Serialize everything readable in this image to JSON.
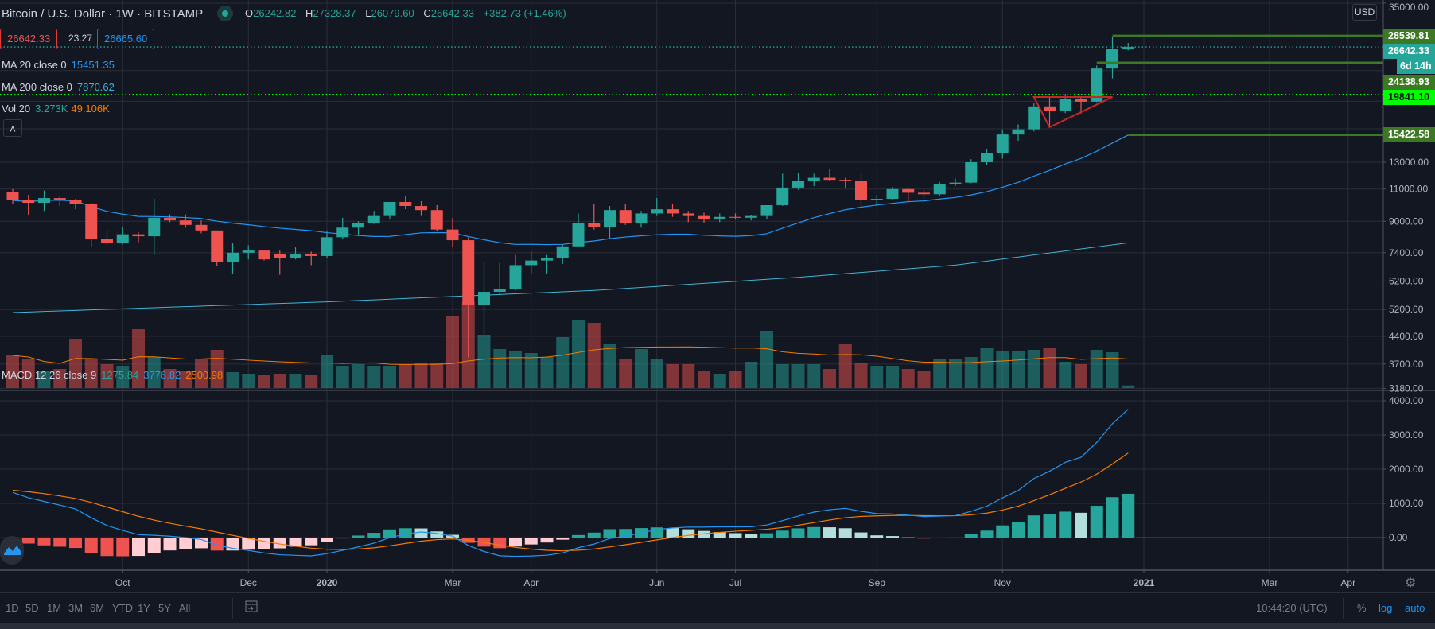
{
  "header": {
    "symbol": "Bitcoin / U.S. Dollar",
    "sep1": "·",
    "interval": "1W",
    "sep2": "·",
    "exchange": "BITSTAMP",
    "ohlc": {
      "o_label": "O",
      "o": "26242.82",
      "h_label": "H",
      "h": "27328.37",
      "l_label": "L",
      "l": "26079.60",
      "c_label": "C",
      "c": "26642.33",
      "change": "+382.73 (+1.46%)"
    },
    "sell_price": "26642.33",
    "spread": "23.27",
    "buy_price": "26665.60",
    "collapse_icon": "chevron-up-icon",
    "collapse_glyph": "˄"
  },
  "indicators": {
    "ma20": {
      "label": "MA 20 close 0",
      "value": "15451.35",
      "color": "#2196f3"
    },
    "ma200": {
      "label": "MA 200 close 0",
      "value": "7870.62",
      "color": "#3fb5d6"
    },
    "vol": {
      "label": "Vol 20",
      "value": "3.273K",
      "ma_value": "49.106K",
      "ma_color": "#f57c00"
    },
    "macd": {
      "label": "MACD 12 26 close 9",
      "hist": "1275.84",
      "macd": "3776.82",
      "signal": "2500.98"
    }
  },
  "currency_button": "USD",
  "price_labels": [
    {
      "text": "28539.81",
      "price": 28539.81,
      "bg": "#3b7a22",
      "fg": "#ffffff"
    },
    {
      "text": "26642.33",
      "price": 26642.33,
      "bg": "#26a69a",
      "fg": "#ffffff",
      "countdown": "6d 14h"
    },
    {
      "text": "24138.93",
      "price": 24138.93,
      "bg": "#3b7a22",
      "fg": "#ffffff"
    },
    {
      "text": "19841.10",
      "price": 19841.1,
      "bg": "#00ff00",
      "fg": "#131722"
    },
    {
      "text": "15422.58",
      "price": 15422.58,
      "bg": "#3b7a22",
      "fg": "#ffffff"
    }
  ],
  "chart_data": {
    "type": "candlestick",
    "scale": "log",
    "colors": {
      "up": "#26a69a",
      "down": "#ef5350",
      "ma20": "#2196f3",
      "ma200": "#3fb5d6",
      "vol_ma": "#f57c00",
      "macd": "#2196f3",
      "signal": "#f57c00"
    },
    "price_ticks": [
      "35000.00",
      "13000.00",
      "11000.00",
      "9000.00",
      "7400.00",
      "6200.00",
      "5200.00",
      "4400.00",
      "3700.00",
      "3180.00"
    ],
    "grid_levels": [
      35000,
      23000,
      19000,
      16000,
      13000,
      11000,
      9000,
      7400,
      6200,
      5200,
      4400,
      3700,
      3180
    ],
    "macd_ticks": [
      "4000.00",
      "3000.00",
      "2000.00",
      "1000.00",
      "0.00"
    ],
    "macd_tick_values": [
      4000,
      3000,
      2000,
      1000,
      0
    ],
    "time_axis": [
      {
        "label": "Oct",
        "bar": 7
      },
      {
        "label": "Dec",
        "bar": 15
      },
      {
        "label": "2020",
        "bar": 20,
        "year": true
      },
      {
        "label": "Mar",
        "bar": 28
      },
      {
        "label": "Apr",
        "bar": 33
      },
      {
        "label": "Jun",
        "bar": 41
      },
      {
        "label": "Jul",
        "bar": 46
      },
      {
        "label": "Sep",
        "bar": 55
      },
      {
        "label": "Nov",
        "bar": 63
      },
      {
        "label": "2021",
        "bar": 72,
        "year": true
      },
      {
        "label": "Mar",
        "bar": 80
      },
      {
        "label": "Apr",
        "bar": 85
      }
    ],
    "ohlc": [
      [
        10800,
        11000,
        10000,
        10250
      ],
      [
        10250,
        10600,
        9350,
        10100
      ],
      [
        10100,
        10900,
        9600,
        10400
      ],
      [
        10400,
        10500,
        9900,
        10300
      ],
      [
        10300,
        10350,
        9700,
        10050
      ],
      [
        10050,
        10100,
        7700,
        8050
      ],
      [
        8050,
        8500,
        7750,
        7850
      ],
      [
        7850,
        8700,
        7800,
        8300
      ],
      [
        8300,
        8400,
        7900,
        8200
      ],
      [
        8200,
        10350,
        7300,
        9200
      ],
      [
        9200,
        9400,
        8950,
        9050
      ],
      [
        9050,
        9400,
        8650,
        8800
      ],
      [
        8800,
        9050,
        8350,
        8500
      ],
      [
        8500,
        8500,
        6800,
        7000
      ],
      [
        7000,
        7850,
        6500,
        7400
      ],
      [
        7400,
        7750,
        7100,
        7500
      ],
      [
        7500,
        7500,
        7050,
        7100
      ],
      [
        7350,
        7500,
        6450,
        7150
      ],
      [
        7150,
        7650,
        7100,
        7350
      ],
      [
        7350,
        7450,
        6850,
        7250
      ],
      [
        7250,
        8450,
        7150,
        8150
      ],
      [
        8150,
        9200,
        8050,
        8650
      ],
      [
        8650,
        9000,
        8250,
        8900
      ],
      [
        8900,
        9600,
        8850,
        9300
      ],
      [
        9300,
        10150,
        9150,
        10150
      ],
      [
        10150,
        10500,
        9700,
        9900
      ],
      [
        9900,
        10200,
        9300,
        9650
      ],
      [
        9650,
        9950,
        8450,
        8550
      ],
      [
        8550,
        9200,
        7650,
        8000
      ],
      [
        8000,
        8150,
        3850,
        5350
      ],
      [
        5350,
        7000,
        4450,
        5800
      ],
      [
        5800,
        6950,
        5700,
        5900
      ],
      [
        5900,
        7300,
        5850,
        6850
      ],
      [
        6850,
        7450,
        6500,
        7050
      ],
      [
        7050,
        7300,
        6500,
        7150
      ],
      [
        7150,
        7800,
        6900,
        7700
      ],
      [
        7700,
        9450,
        7650,
        8900
      ],
      [
        8900,
        10050,
        8550,
        8700
      ],
      [
        8700,
        9900,
        8100,
        9650
      ],
      [
        9650,
        10000,
        8800,
        8900
      ],
      [
        8900,
        9600,
        8650,
        9450
      ],
      [
        9450,
        10400,
        9300,
        9700
      ],
      [
        9700,
        10000,
        9250,
        9450
      ],
      [
        9450,
        9600,
        8950,
        9300
      ],
      [
        9300,
        9500,
        8900,
        9100
      ],
      [
        9100,
        9450,
        8950,
        9250
      ],
      [
        9250,
        9450,
        9100,
        9200
      ],
      [
        9200,
        9350,
        9050,
        9300
      ],
      [
        9300,
        9950,
        9150,
        9950
      ],
      [
        9950,
        12100,
        9900,
        11100
      ],
      [
        11100,
        12150,
        10950,
        11600
      ],
      [
        11600,
        12100,
        11200,
        11800
      ],
      [
        11800,
        12500,
        11600,
        11650
      ],
      [
        11650,
        11800,
        11100,
        11600
      ],
      [
        11600,
        12100,
        9850,
        10250
      ],
      [
        10250,
        10600,
        9900,
        10350
      ],
      [
        10350,
        11150,
        10250,
        11000
      ],
      [
        11000,
        11100,
        10150,
        10750
      ],
      [
        10750,
        10950,
        10400,
        10650
      ],
      [
        10650,
        11500,
        10550,
        11350
      ],
      [
        11350,
        11750,
        11200,
        11450
      ],
      [
        11450,
        13250,
        11400,
        13000
      ],
      [
        13000,
        14100,
        12800,
        13750
      ],
      [
        13750,
        15950,
        13300,
        15450
      ],
      [
        15450,
        16450,
        14850,
        15950
      ],
      [
        15950,
        18800,
        15750,
        18400
      ],
      [
        18400,
        19450,
        16200,
        17900
      ],
      [
        17900,
        19900,
        17650,
        19300
      ],
      [
        19300,
        19450,
        17600,
        18950
      ],
      [
        18950,
        23750,
        18900,
        23300
      ],
      [
        23300,
        28400,
        21900,
        26259.6
      ],
      [
        26242.82,
        27328.37,
        26079.6,
        26642.33
      ]
    ],
    "volume_k": [
      41,
      37,
      22,
      24,
      62,
      36,
      30,
      28,
      74,
      39,
      24,
      21,
      37,
      48,
      20,
      18,
      16,
      18,
      18,
      16,
      41,
      28,
      30,
      28,
      28,
      30,
      32,
      31,
      91,
      108,
      67,
      49,
      47,
      44,
      39,
      64,
      86,
      82,
      55,
      37,
      49,
      36,
      30,
      30,
      21,
      18,
      21,
      33,
      72,
      30,
      30,
      30,
      24,
      56,
      32,
      28,
      28,
      24,
      21,
      37,
      37,
      39,
      51,
      47,
      47,
      48,
      51,
      33,
      30,
      48,
      45,
      3.273
    ],
    "ma200_samples": [
      {
        "bar": 0,
        "value": 5100
      },
      {
        "bar": 20,
        "value": 5450
      },
      {
        "bar": 37,
        "value": 5850
      },
      {
        "bar": 50,
        "value": 6350
      },
      {
        "bar": 60,
        "value": 6850
      },
      {
        "bar": 71,
        "value": 7870.62
      }
    ],
    "macd_seed": {
      "ema12": 10900,
      "ema26": 9420,
      "signal": 1400
    },
    "drawings": {
      "hlines": [
        {
          "price": 28539.81,
          "from_bar": 70
        },
        {
          "price": 24138.93,
          "from_bar": 69
        },
        {
          "price": 15422.58,
          "from_bar": 71
        }
      ],
      "dotted": [
        {
          "price": 26642.33,
          "color": "#26a69a"
        },
        {
          "price": 19841.1,
          "color": "#00ff00"
        }
      ],
      "triangle": [
        {
          "bar": 65,
          "price": 19508
        },
        {
          "bar": 70,
          "price": 19508
        },
        {
          "bar": 66,
          "price": 16164
        }
      ]
    }
  },
  "toolbar": {
    "ranges": [
      "1D",
      "5D",
      "1M",
      "3M",
      "6M",
      "YTD",
      "1Y",
      "5Y",
      "All"
    ],
    "clock": "10:44:20 (UTC)",
    "percent": "%",
    "log": "log",
    "auto": "auto"
  }
}
